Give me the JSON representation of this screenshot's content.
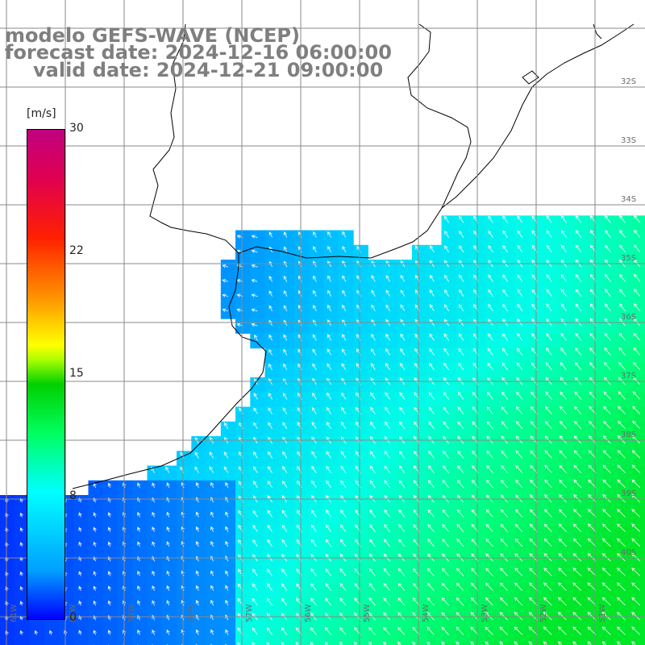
{
  "title": {
    "line1": "modelo GEFS-WAVE (NCEP)",
    "line2": "forecast date: 2024-12-16 06:00:00",
    "line3": "valid date: 2024-12-21 09:00:00"
  },
  "colorbar": {
    "unit": "[m/s]",
    "ticks": [
      {
        "label": "30",
        "value": 30
      },
      {
        "label": "22",
        "value": 22
      },
      {
        "label": "15",
        "value": 15
      },
      {
        "label": "8",
        "value": 8
      },
      {
        "label": "0",
        "value": 0
      }
    ],
    "colors": [
      "#0000ff",
      "#00a0ff",
      "#00ffff",
      "#00ff60",
      "#00d000",
      "#aaff00",
      "#ffff00",
      "#ff9000",
      "#ff2000",
      "#e00050",
      "#c00080"
    ]
  },
  "grid": {
    "lat_labels": [
      "32S",
      "33S",
      "34S",
      "35S",
      "36S",
      "37S",
      "38S",
      "39S",
      "40S"
    ],
    "lon_labels": [
      "61W",
      "60W",
      "59W",
      "58W",
      "57W",
      "56W",
      "55W",
      "54W",
      "53W",
      "52W",
      "51W"
    ]
  },
  "palette": {
    "land": "#ffffff",
    "coastline": "#000000",
    "grid_line": "#8a8a8a",
    "title_text": "#7f7f7f",
    "arrow": "#ffffff"
  }
}
